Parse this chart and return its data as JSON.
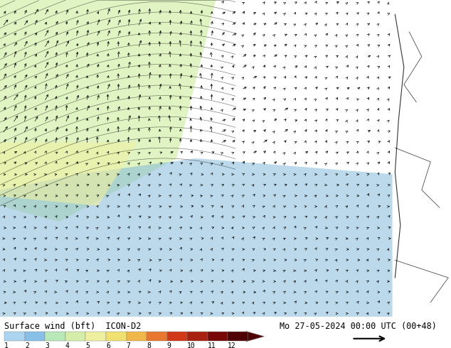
{
  "title_left": "Surface wind (bft)  ICON-D2",
  "title_right": "Mo 27-05-2024 00:00 UTC (00+48)",
  "colorbar_colors": [
    "#aad4f0",
    "#88c0e8",
    "#b8e8b8",
    "#d4eeaa",
    "#eef0a0",
    "#f0e070",
    "#f0b84a",
    "#e87830",
    "#d03818",
    "#a82010",
    "#780808",
    "#500004"
  ],
  "background_color": "#ffffff",
  "map_bg_deep_blue": "#7ab4d8",
  "map_bg_light_blue": "#b8dff0",
  "map_bg_very_light_blue": "#d0eef8",
  "map_bg_green": "#b8e8b8",
  "map_bg_light_green": "#d4eea8",
  "map_bg_yellow": "#eef0a0",
  "map_bg_tan": "#d4c89a",
  "label_fontsize": 8,
  "title_fontsize": 8.5,
  "fig_width": 6.34,
  "fig_height": 4.9,
  "dpi": 100
}
